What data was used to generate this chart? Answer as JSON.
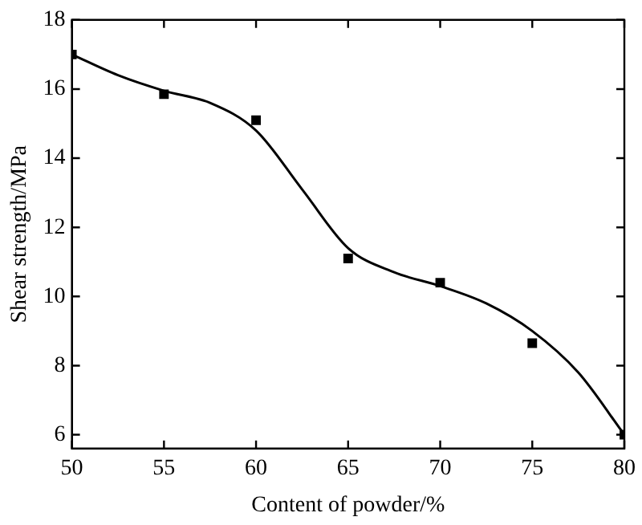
{
  "chart_data": {
    "type": "scatter",
    "xlabel": "Content of powder/%",
    "ylabel": "Shear strength/MPa",
    "xlim": [
      50,
      80
    ],
    "xticks": [
      50,
      55,
      60,
      65,
      70,
      75,
      80
    ],
    "ylim": [
      5.6,
      18
    ],
    "yticks": [
      6,
      8,
      10,
      12,
      14,
      16,
      18
    ],
    "grid": false,
    "legend": false,
    "marker": "square",
    "series": [
      {
        "type": "scatter",
        "color": "#000000",
        "x": [
          50,
          55,
          60,
          65,
          70,
          75,
          80
        ],
        "values": [
          17.0,
          15.85,
          15.1,
          11.1,
          10.4,
          8.65,
          6.0
        ]
      },
      {
        "type": "line",
        "color": "#000000",
        "marker": "none",
        "line_style": "solid",
        "x": [
          50,
          52.5,
          55,
          57.5,
          60,
          62.5,
          65,
          67.5,
          70,
          72.5,
          75,
          77.5,
          80
        ],
        "values": [
          17.0,
          16.4,
          15.95,
          15.6,
          14.8,
          13.1,
          11.4,
          10.7,
          10.3,
          9.8,
          9.0,
          7.8,
          6.0
        ]
      }
    ]
  }
}
